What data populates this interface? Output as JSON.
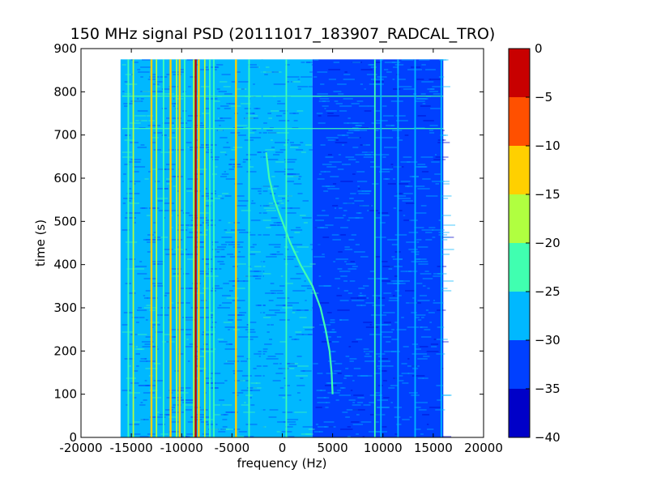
{
  "chart_data": {
    "type": "heatmap",
    "title": "150 MHz signal PSD (20111017_183907_RADCAL_TRO)",
    "xlabel": "frequency (Hz)",
    "ylabel": "time (s)",
    "xlim": [
      -20000,
      20000
    ],
    "ylim": [
      0,
      900
    ],
    "x_ticks": [
      -20000,
      -15000,
      -10000,
      -5000,
      0,
      5000,
      10000,
      15000,
      20000
    ],
    "y_ticks": [
      0,
      100,
      200,
      300,
      400,
      500,
      600,
      700,
      800,
      900
    ],
    "data_extent": {
      "x": [
        -16000,
        16000
      ],
      "y": [
        0,
        875
      ]
    },
    "colorbar": {
      "levels": [
        -40,
        -35,
        -30,
        -25,
        -20,
        -15,
        -10,
        -5,
        0
      ],
      "colors": [
        "#0000c8",
        "#0040ff",
        "#00b8ff",
        "#40ffb0",
        "#b0ff40",
        "#ffd000",
        "#ff5000",
        "#c80000"
      ]
    },
    "background_regions": [
      {
        "x_range": [
          -16000,
          3000
        ],
        "level": -27.5
      },
      {
        "x_range": [
          3000,
          16000
        ],
        "level": -32.5
      }
    ],
    "vertical_lines": [
      {
        "x": -16000,
        "level": -27.5
      },
      {
        "x": -15300,
        "level": -22.5
      },
      {
        "x": -14800,
        "level": -17.5
      },
      {
        "x": -13000,
        "level": -12.5
      },
      {
        "x": -12500,
        "level": -17.5
      },
      {
        "x": -11800,
        "level": -22.5
      },
      {
        "x": -11100,
        "level": -12.5
      },
      {
        "x": -10500,
        "level": -17.5
      },
      {
        "x": -10200,
        "level": -12.5
      },
      {
        "x": -9700,
        "level": -22.5
      },
      {
        "x": -8800,
        "level": -17.5
      },
      {
        "x": -8600,
        "level": -2.5
      },
      {
        "x": -8300,
        "level": -12.5
      },
      {
        "x": -7700,
        "level": -17.5
      },
      {
        "x": -7200,
        "level": -22.5
      },
      {
        "x": -6800,
        "level": -22.5
      },
      {
        "x": -4600,
        "level": -12.5
      },
      {
        "x": -3300,
        "level": -22.5
      },
      {
        "x": -2000,
        "level": -27.5
      },
      {
        "x": 400,
        "level": -22.5
      },
      {
        "x": 9200,
        "level": -22.5
      },
      {
        "x": 9800,
        "level": -27.5
      },
      {
        "x": 11500,
        "level": -27.5
      },
      {
        "x": 13200,
        "level": -27.5
      },
      {
        "x": 15800,
        "level": -27.5
      }
    ],
    "horizontal_lines": [
      {
        "y": 715,
        "level": -22.5
      },
      {
        "y": 790,
        "level": -22.5
      }
    ],
    "sweep_curve": {
      "level": -22.5,
      "points": [
        {
          "x": -1600,
          "y": 660
        },
        {
          "x": -1300,
          "y": 600
        },
        {
          "x": -800,
          "y": 550
        },
        {
          "x": 0,
          "y": 500
        },
        {
          "x": 800,
          "y": 450
        },
        {
          "x": 1800,
          "y": 400
        },
        {
          "x": 3000,
          "y": 350
        },
        {
          "x": 3800,
          "y": 300
        },
        {
          "x": 4300,
          "y": 250
        },
        {
          "x": 4700,
          "y": 200
        },
        {
          "x": 4900,
          "y": 150
        },
        {
          "x": 5000,
          "y": 100
        }
      ]
    }
  }
}
